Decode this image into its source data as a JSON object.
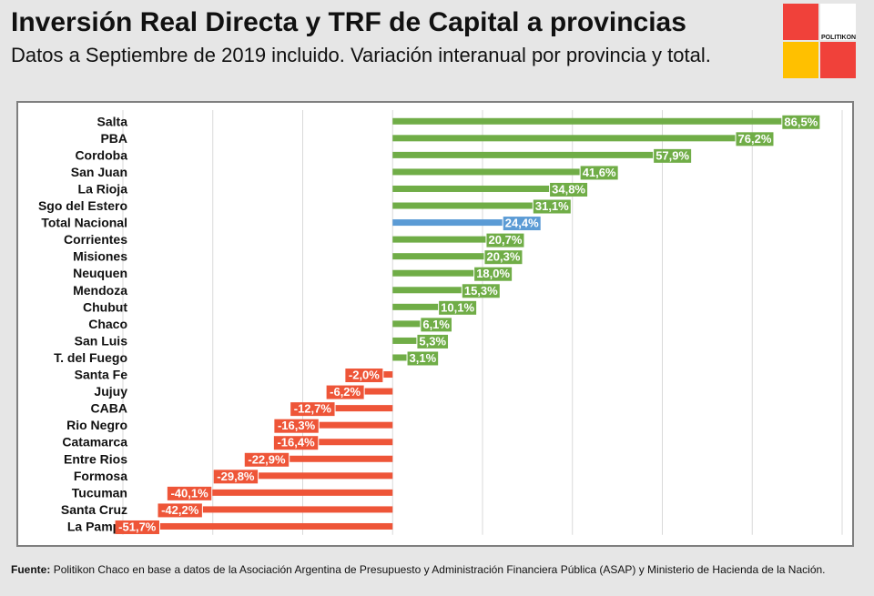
{
  "header": {
    "title": "Inversión Real Directa y TRF de Capital a provincias",
    "subtitle": "Datos a Septiembre de 2019 incluido. Variación interanual por provincia y total."
  },
  "logo": {
    "text": "POLITIKON",
    "colors": [
      "#f0413a",
      "#ffffff",
      "#ffc000",
      "#f0413a"
    ]
  },
  "source": {
    "label": "Fuente:",
    "text": "Politikon Chaco en base a datos de la Asociación Argentina de Presupuesto y Administración Financiera Pública (ASAP) y Ministerio de Hacienda de la Nación."
  },
  "colors": {
    "positive": "#70ad47",
    "negative": "#ee5538",
    "total": "#5b9bd5"
  },
  "chart_data": {
    "type": "bar",
    "orientation": "horizontal",
    "title": "",
    "xlabel": "",
    "ylabel": "",
    "xlim": [
      -60,
      100
    ],
    "grid": true,
    "legend": "none",
    "categories": [
      "Salta",
      "PBA",
      "Cordoba",
      "San Juan",
      "La Rioja",
      "Sgo del Estero",
      "Total Nacional",
      "Corrientes",
      "Misiones",
      "Neuquen",
      "Mendoza",
      "Chubut",
      "Chaco",
      "San Luis",
      "T. del Fuego",
      "Santa Fe",
      "Jujuy",
      "CABA",
      "Rio Negro",
      "Catamarca",
      "Entre Rios",
      "Formosa",
      "Tucuman",
      "Santa Cruz",
      "La Pampa"
    ],
    "values": [
      86.5,
      76.2,
      57.9,
      41.6,
      34.8,
      31.1,
      24.4,
      20.7,
      20.3,
      18.0,
      15.3,
      10.1,
      6.1,
      5.3,
      3.1,
      -2.0,
      -6.2,
      -12.7,
      -16.3,
      -16.4,
      -22.9,
      -29.8,
      -40.1,
      -42.2,
      -51.7
    ],
    "labels": [
      "86,5%",
      "76,2%",
      "57,9%",
      "41,6%",
      "34,8%",
      "31,1%",
      "24,4%",
      "20,7%",
      "20,3%",
      "18,0%",
      "15,3%",
      "10,1%",
      "6,1%",
      "5,3%",
      "3,1%",
      "-2,0%",
      "-6,2%",
      "-12,7%",
      "-16,3%",
      "-16,4%",
      "-22,9%",
      "-29,8%",
      "-40,1%",
      "-42,2%",
      "-51,7%"
    ],
    "highlight": "Total Nacional"
  }
}
